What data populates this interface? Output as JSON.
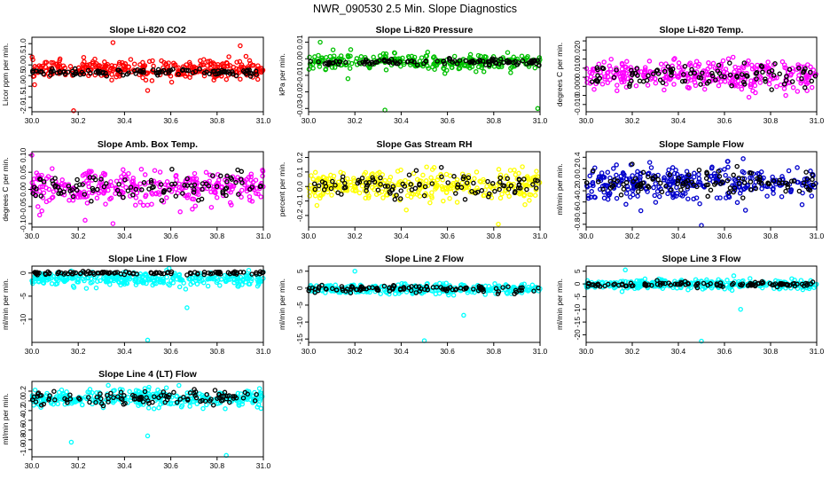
{
  "title": "NWR_090530  2.5 Min. Slope Diagnostics",
  "chart_data": [
    {
      "type": "scatter",
      "title": "Slope Li-820 CO2",
      "ylabel": "Licor ppm per min.",
      "xlim": [
        30.0,
        31.0
      ],
      "ylim": [
        -2.2,
        1.3
      ],
      "xticks": [
        30.0,
        30.2,
        30.4,
        30.6,
        30.8,
        31.0
      ],
      "xtick_labels": [
        "30.0",
        "30.2",
        "30.4",
        "30.6",
        "30.8",
        "31.0"
      ],
      "yticks": [
        -2.0,
        -1.5,
        -1.0,
        -0.5,
        0.0,
        0.5,
        1.0
      ],
      "ytick_labels": [
        "-2.0",
        "-1.5",
        "-1.0",
        "-0.5",
        "0.0",
        "0.5",
        "1.0"
      ],
      "series": [
        {
          "color": "#ff0000",
          "center": -0.2,
          "spread": 0.35,
          "n": 340,
          "outliers": [
            [
              30.18,
              -2.15
            ],
            [
              30.5,
              -1.2
            ],
            [
              30.35,
              1.05
            ],
            [
              30.9,
              0.9
            ]
          ]
        },
        {
          "color": "#000000",
          "center": -0.35,
          "spread": 0.12,
          "n": 110,
          "outliers": []
        }
      ]
    },
    {
      "type": "scatter",
      "title": "Slope Li-820 Pressure",
      "ylabel": "kPa per min.",
      "xlim": [
        30.0,
        31.0
      ],
      "ylim": [
        -0.032,
        0.013
      ],
      "xticks": [
        30.0,
        30.2,
        30.4,
        30.6,
        30.8,
        31.0
      ],
      "xtick_labels": [
        "30.0",
        "30.2",
        "30.4",
        "30.6",
        "30.8",
        "31.0"
      ],
      "yticks": [
        -0.03,
        -0.02,
        -0.01,
        0.0,
        0.01
      ],
      "ytick_labels": [
        "-0.03",
        "-0.02",
        "-0.01",
        "0.00",
        "0.01"
      ],
      "series": [
        {
          "color": "#00c000",
          "center": -0.002,
          "spread": 0.004,
          "n": 300,
          "outliers": [
            [
              30.33,
              -0.031
            ],
            [
              30.99,
              -0.03
            ],
            [
              30.17,
              -0.012
            ],
            [
              30.05,
              0.01
            ]
          ]
        },
        {
          "color": "#000000",
          "center": -0.002,
          "spread": 0.0015,
          "n": 110,
          "outliers": []
        }
      ]
    },
    {
      "type": "scatter",
      "title": "Slope Li-820 Temp.",
      "ylabel": "degrees C per min.",
      "xlim": [
        30.0,
        31.0
      ],
      "ylim": [
        -0.014,
        0.027
      ],
      "xticks": [
        30.0,
        30.2,
        30.4,
        30.6,
        30.8,
        31.0
      ],
      "xtick_labels": [
        "30.0",
        "30.2",
        "30.4",
        "30.6",
        "30.8",
        "31.0"
      ],
      "yticks": [
        -0.01,
        -0.005,
        0.0,
        0.005,
        0.01,
        0.015,
        0.02,
        0.025
      ],
      "ytick_labels": [
        "-0.010",
        "",
        "0.000",
        "",
        "0.010",
        "",
        "0.020",
        ""
      ],
      "series": [
        {
          "color": "#ff00ff",
          "center": 0.006,
          "spread": 0.007,
          "n": 320,
          "outliers": []
        },
        {
          "color": "#000000",
          "center": 0.006,
          "spread": 0.005,
          "n": 100,
          "outliers": []
        }
      ]
    },
    {
      "type": "scatter",
      "title": "Slope Amb. Box Temp.",
      "ylabel": "degrees C per min.",
      "xlim": [
        30.0,
        31.0
      ],
      "ylim": [
        -0.11,
        0.11
      ],
      "xticks": [
        30.0,
        30.2,
        30.4,
        30.6,
        30.8,
        31.0
      ],
      "xtick_labels": [
        "30.0",
        "30.2",
        "30.4",
        "30.6",
        "30.8",
        "31.0"
      ],
      "yticks": [
        -0.1,
        -0.05,
        0.0,
        0.05,
        0.1
      ],
      "ytick_labels": [
        "-0.10",
        "-0.05",
        "0.00",
        "0.05",
        "0.10"
      ],
      "series": [
        {
          "color": "#ff00ff",
          "center": 0.005,
          "spread": 0.04,
          "n": 320,
          "outliers": [
            [
              30.0,
              0.1
            ],
            [
              30.23,
              -0.09
            ],
            [
              30.35,
              -0.1
            ]
          ]
        },
        {
          "color": "#000000",
          "center": 0.01,
          "spread": 0.03,
          "n": 100,
          "outliers": []
        }
      ]
    },
    {
      "type": "scatter",
      "title": "Slope Gas Stream RH",
      "ylabel": "percent per min.",
      "xlim": [
        30.0,
        31.0
      ],
      "ylim": [
        -0.28,
        0.24
      ],
      "xticks": [
        30.0,
        30.2,
        30.4,
        30.6,
        30.8,
        31.0
      ],
      "xtick_labels": [
        "30.0",
        "30.2",
        "30.4",
        "30.6",
        "30.8",
        "31.0"
      ],
      "yticks": [
        -0.2,
        -0.1,
        0.0,
        0.1,
        0.2
      ],
      "ytick_labels": [
        "-0.2",
        "-0.1",
        "0.0",
        "0.1",
        "0.2"
      ],
      "series": [
        {
          "color": "#ffff00",
          "center": 0.0,
          "spread": 0.09,
          "n": 340,
          "outliers": [
            [
              30.82,
              -0.26
            ]
          ]
        },
        {
          "color": "#000000",
          "center": 0.0,
          "spread": 0.07,
          "n": 100,
          "outliers": []
        }
      ]
    },
    {
      "type": "scatter",
      "title": "Slope Sample Flow",
      "ylabel": "ml/min per min.",
      "xlim": [
        30.0,
        31.0
      ],
      "ylim": [
        -0.85,
        0.5
      ],
      "xticks": [
        30.0,
        30.2,
        30.4,
        30.6,
        30.8,
        31.0
      ],
      "xtick_labels": [
        "30.0",
        "30.2",
        "30.4",
        "30.6",
        "30.8",
        "31.0"
      ],
      "yticks": [
        -0.8,
        -0.6,
        -0.4,
        -0.2,
        0.0,
        0.2,
        0.4
      ],
      "ytick_labels": [
        "-0.8",
        "-0.6",
        "-0.4",
        "-0.2",
        "0.0",
        "0.2",
        "0.4"
      ],
      "series": [
        {
          "color": "#0000cc",
          "center": -0.05,
          "spread": 0.25,
          "n": 320,
          "outliers": [
            [
              30.5,
              -0.82
            ]
          ]
        },
        {
          "color": "#000000",
          "center": -0.05,
          "spread": 0.2,
          "n": 110,
          "outliers": []
        }
      ]
    },
    {
      "type": "scatter",
      "title": "Slope Line 1 Flow",
      "ylabel": "ml/min per min.",
      "xlim": [
        30.0,
        31.0
      ],
      "ylim": [
        -15.0,
        1.5
      ],
      "xticks": [
        30.0,
        30.2,
        30.4,
        30.6,
        30.8,
        31.0
      ],
      "xtick_labels": [
        "30.0",
        "30.2",
        "30.4",
        "30.6",
        "30.8",
        "31.0"
      ],
      "yticks": [
        -10,
        -5,
        0
      ],
      "ytick_labels": [
        "-10",
        "-5",
        "0"
      ],
      "series": [
        {
          "color": "#00ffff",
          "center": -1.3,
          "spread": 1.2,
          "n": 320,
          "outliers": [
            [
              30.5,
              -14.5
            ],
            [
              30.67,
              -7.5
            ]
          ]
        },
        {
          "color": "#000000",
          "center": 0.0,
          "spread": 0.3,
          "n": 110,
          "outliers": []
        }
      ]
    },
    {
      "type": "scatter",
      "title": "Slope Line 2 Flow",
      "ylabel": "ml/min per min.",
      "xlim": [
        30.0,
        31.0
      ],
      "ylim": [
        -16.0,
        6.5
      ],
      "xticks": [
        30.0,
        30.2,
        30.4,
        30.6,
        30.8,
        31.0
      ],
      "xtick_labels": [
        "30.0",
        "30.2",
        "30.4",
        "30.6",
        "30.8",
        "31.0"
      ],
      "yticks": [
        -15,
        -10,
        -5,
        0,
        5
      ],
      "ytick_labels": [
        "-15",
        "-10",
        "-5",
        "0",
        "5"
      ],
      "series": [
        {
          "color": "#00ffff",
          "center": -0.3,
          "spread": 1.2,
          "n": 320,
          "outliers": [
            [
              30.5,
              -15.5
            ],
            [
              30.67,
              -8.0
            ],
            [
              30.2,
              5.0
            ]
          ]
        },
        {
          "color": "#000000",
          "center": -0.2,
          "spread": 0.8,
          "n": 110,
          "outliers": []
        }
      ]
    },
    {
      "type": "scatter",
      "title": "Slope Line 3 Flow",
      "ylabel": "ml/min per min.",
      "xlim": [
        30.0,
        31.0
      ],
      "ylim": [
        -23.0,
        7.0
      ],
      "xticks": [
        30.0,
        30.2,
        30.4,
        30.6,
        30.8,
        31.0
      ],
      "xtick_labels": [
        "30.0",
        "30.2",
        "30.4",
        "30.6",
        "30.8",
        "31.0"
      ],
      "yticks": [
        -20,
        -15,
        -10,
        -5,
        0,
        5
      ],
      "ytick_labels": [
        "-20",
        "-15",
        "-10",
        "-5",
        "0",
        "5"
      ],
      "series": [
        {
          "color": "#00ffff",
          "center": -0.2,
          "spread": 1.5,
          "n": 320,
          "outliers": [
            [
              30.5,
              -22.5
            ],
            [
              30.67,
              -10.0
            ],
            [
              30.17,
              5.5
            ]
          ]
        },
        {
          "color": "#000000",
          "center": -0.2,
          "spread": 0.8,
          "n": 110,
          "outliers": []
        }
      ]
    },
    {
      "type": "scatter",
      "title": "Slope Line 4 (LT) Flow",
      "ylabel": "ml/min per min.",
      "xlim": [
        30.0,
        31.0
      ],
      "ylim": [
        -1.15,
        0.4
      ],
      "xticks": [
        30.0,
        30.2,
        30.4,
        30.6,
        30.8,
        31.0
      ],
      "xtick_labels": [
        "30.0",
        "30.2",
        "30.4",
        "30.6",
        "30.8",
        "31.0"
      ],
      "yticks": [
        -1.0,
        -0.8,
        -0.6,
        -0.4,
        -0.2,
        0.0,
        0.2
      ],
      "ytick_labels": [
        "-1.0",
        "-0.8",
        "-0.6",
        "-0.4",
        "-0.2",
        "0.0",
        "0.2"
      ],
      "series": [
        {
          "color": "#00ffff",
          "center": 0.05,
          "spread": 0.15,
          "n": 340,
          "outliers": [
            [
              30.17,
              -0.85
            ],
            [
              30.5,
              -0.72
            ],
            [
              30.84,
              -1.12
            ],
            [
              30.33,
              0.32
            ]
          ]
        },
        {
          "color": "#000000",
          "center": 0.05,
          "spread": 0.12,
          "n": 110,
          "outliers": []
        }
      ]
    }
  ]
}
